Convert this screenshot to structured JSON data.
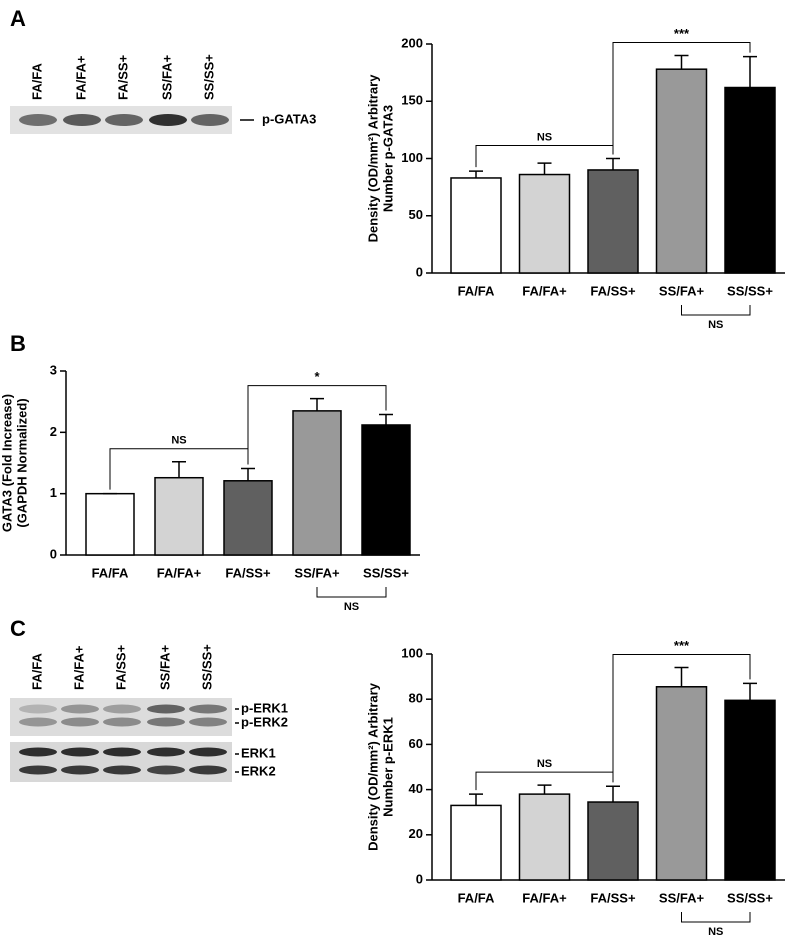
{
  "panels": [
    "A",
    "B",
    "C"
  ],
  "blots": [
    {
      "lanes": [
        "FA/FA",
        "FA/FA+",
        "FA/SS+",
        "SS/FA+",
        "SS/SS+"
      ],
      "bands": [
        "p-GATA3"
      ]
    },
    {
      "lanes": [
        "FA/FA",
        "FA/FA+",
        "FA/SS+",
        "SS/FA+",
        "SS/SS+"
      ],
      "bands": [
        "p-ERK1",
        "p-ERK2",
        "ERK1",
        "ERK2"
      ]
    }
  ],
  "chart_data": [
    {
      "type": "bar",
      "y_label": [
        "Density (OD/mm²) Arbitrary",
        "Number  p-GATA3"
      ],
      "categories": [
        "FA/FA",
        "FA/FA+",
        "FA/SS+",
        "SS/FA+",
        "SS/SS+"
      ],
      "values": [
        83,
        86,
        90,
        178,
        162
      ],
      "errors": [
        6,
        10,
        10,
        12,
        27
      ],
      "colors": [
        "#ffffff",
        "#d3d3d3",
        "#606060",
        "#999999",
        "#000000"
      ],
      "ylim": [
        0,
        200
      ],
      "yticks": [
        0,
        50,
        100,
        150,
        200
      ],
      "comparisons": [
        {
          "label": "NS",
          "groups": [
            "FA/FA",
            "FA/SS+"
          ]
        },
        {
          "label": "***",
          "groups": [
            "FA/SS+",
            "SS/SS+"
          ]
        },
        {
          "label": "NS",
          "groups": [
            "SS/FA+",
            "SS/SS+"
          ],
          "position": "below"
        }
      ]
    },
    {
      "type": "bar",
      "y_label": [
        "GATA3 (Fold Increase)",
        "(GAPDH Normalized)"
      ],
      "categories": [
        "FA/FA",
        "FA/FA+",
        "FA/SS+",
        "SS/FA+",
        "SS/SS+"
      ],
      "values": [
        1.0,
        1.26,
        1.21,
        2.35,
        2.12
      ],
      "errors": [
        0,
        0.26,
        0.2,
        0.2,
        0.17
      ],
      "colors": [
        "#ffffff",
        "#d3d3d3",
        "#606060",
        "#999999",
        "#000000"
      ],
      "ylim": [
        0,
        3
      ],
      "yticks": [
        0,
        1,
        2,
        3
      ],
      "comparisons": [
        {
          "label": "NS",
          "groups": [
            "FA/FA",
            "FA/SS+"
          ]
        },
        {
          "label": "*",
          "groups": [
            "FA/SS+",
            "SS/SS+"
          ]
        },
        {
          "label": "NS",
          "groups": [
            "SS/FA+",
            "SS/SS+"
          ],
          "position": "below"
        }
      ]
    },
    {
      "type": "bar",
      "y_label": [
        "Density (OD/mm²) Arbitrary",
        "Number  p-ERK1"
      ],
      "categories": [
        "FA/FA",
        "FA/FA+",
        "FA/SS+",
        "SS/FA+",
        "SS/SS+"
      ],
      "values": [
        33,
        38,
        34.5,
        85.5,
        79.5
      ],
      "errors": [
        5,
        4,
        7,
        8.5,
        7.5
      ],
      "colors": [
        "#ffffff",
        "#d3d3d3",
        "#606060",
        "#999999",
        "#000000"
      ],
      "ylim": [
        0,
        100
      ],
      "yticks": [
        0,
        20,
        40,
        60,
        80,
        100
      ],
      "comparisons": [
        {
          "label": "NS",
          "groups": [
            "FA/FA",
            "FA/SS+"
          ]
        },
        {
          "label": "***",
          "groups": [
            "FA/SS+",
            "SS/SS+"
          ]
        },
        {
          "label": "NS",
          "groups": [
            "SS/FA+",
            "SS/SS+"
          ],
          "position": "below"
        }
      ]
    }
  ]
}
